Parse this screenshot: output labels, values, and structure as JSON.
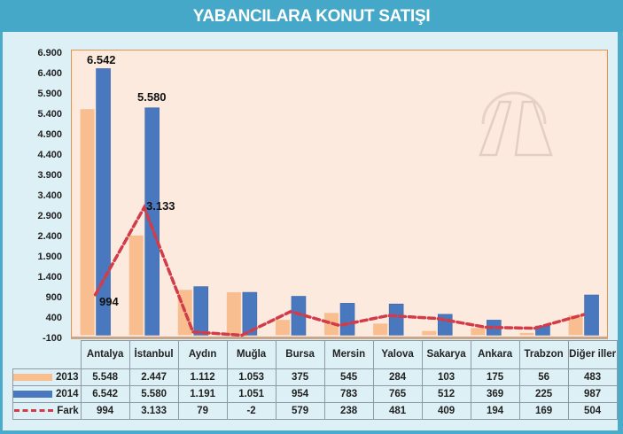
{
  "title": "YABANCILARA KONUT SATIŞI",
  "colors": {
    "title_bar": "#46A8C8",
    "panel": "#DDF0F6",
    "plot_bg": "#FDEADF",
    "plot_border": "#E8934A",
    "series_2013": "#F9BE8F",
    "series_2014": "#4A78BE",
    "series_fark": "#D23B48"
  },
  "y_ticks": [
    "6.900",
    "6.400",
    "5.900",
    "5.400",
    "4.900",
    "4.400",
    "3.900",
    "3.400",
    "2.900",
    "2.400",
    "1.900",
    "1.400",
    "900",
    "400",
    "-100"
  ],
  "data_labels": {
    "antalya_2014": "6.542",
    "istanbul_2014": "5.580",
    "istanbul_fark": "3.133",
    "antalya_fark": "994"
  },
  "table": {
    "series_labels": [
      "2013",
      "2014",
      "Fark"
    ],
    "categories": [
      "Antalya",
      "İstanbul",
      "Aydın",
      "Muğla",
      "Bursa",
      "Mersin",
      "Yalova",
      "Sakarya",
      "Ankara",
      "Trabzon",
      "Diğer iller"
    ],
    "rows": {
      "s2013": [
        "5.548",
        "2.447",
        "1.112",
        "1.053",
        "375",
        "545",
        "284",
        "103",
        "175",
        "56",
        "483"
      ],
      "s2014": [
        "6.542",
        "5.580",
        "1.191",
        "1.051",
        "954",
        "783",
        "765",
        "512",
        "369",
        "225",
        "987"
      ],
      "fark": [
        "994",
        "3.133",
        "79",
        "-2",
        "579",
        "238",
        "481",
        "409",
        "194",
        "169",
        "504"
      ]
    }
  },
  "chart_data": {
    "type": "bar",
    "title": "YABANCILARA KONUT SATIŞI",
    "xlabel": "",
    "ylabel": "",
    "ylim": [
      -100,
      6900
    ],
    "yticks": [
      -100,
      400,
      900,
      1400,
      1900,
      2400,
      2900,
      3400,
      3900,
      4400,
      4900,
      5400,
      5900,
      6400,
      6900
    ],
    "grid": false,
    "legend_position": "table-left",
    "categories": [
      "Antalya",
      "İstanbul",
      "Aydın",
      "Muğla",
      "Bursa",
      "Mersin",
      "Yalova",
      "Sakarya",
      "Ankara",
      "Trabzon",
      "Diğer iller"
    ],
    "series": [
      {
        "name": "2013",
        "type": "bar",
        "values": [
          5548,
          2447,
          1112,
          1053,
          375,
          545,
          284,
          103,
          175,
          56,
          483
        ]
      },
      {
        "name": "2014",
        "type": "bar",
        "values": [
          6542,
          5580,
          1191,
          1051,
          954,
          783,
          765,
          512,
          369,
          225,
          987
        ]
      },
      {
        "name": "Fark",
        "type": "line",
        "style": "dashed",
        "values": [
          994,
          3133,
          79,
          -2,
          579,
          238,
          481,
          409,
          194,
          169,
          504
        ]
      }
    ],
    "annotations": [
      "6.542",
      "5.580",
      "3.133",
      "994"
    ]
  }
}
